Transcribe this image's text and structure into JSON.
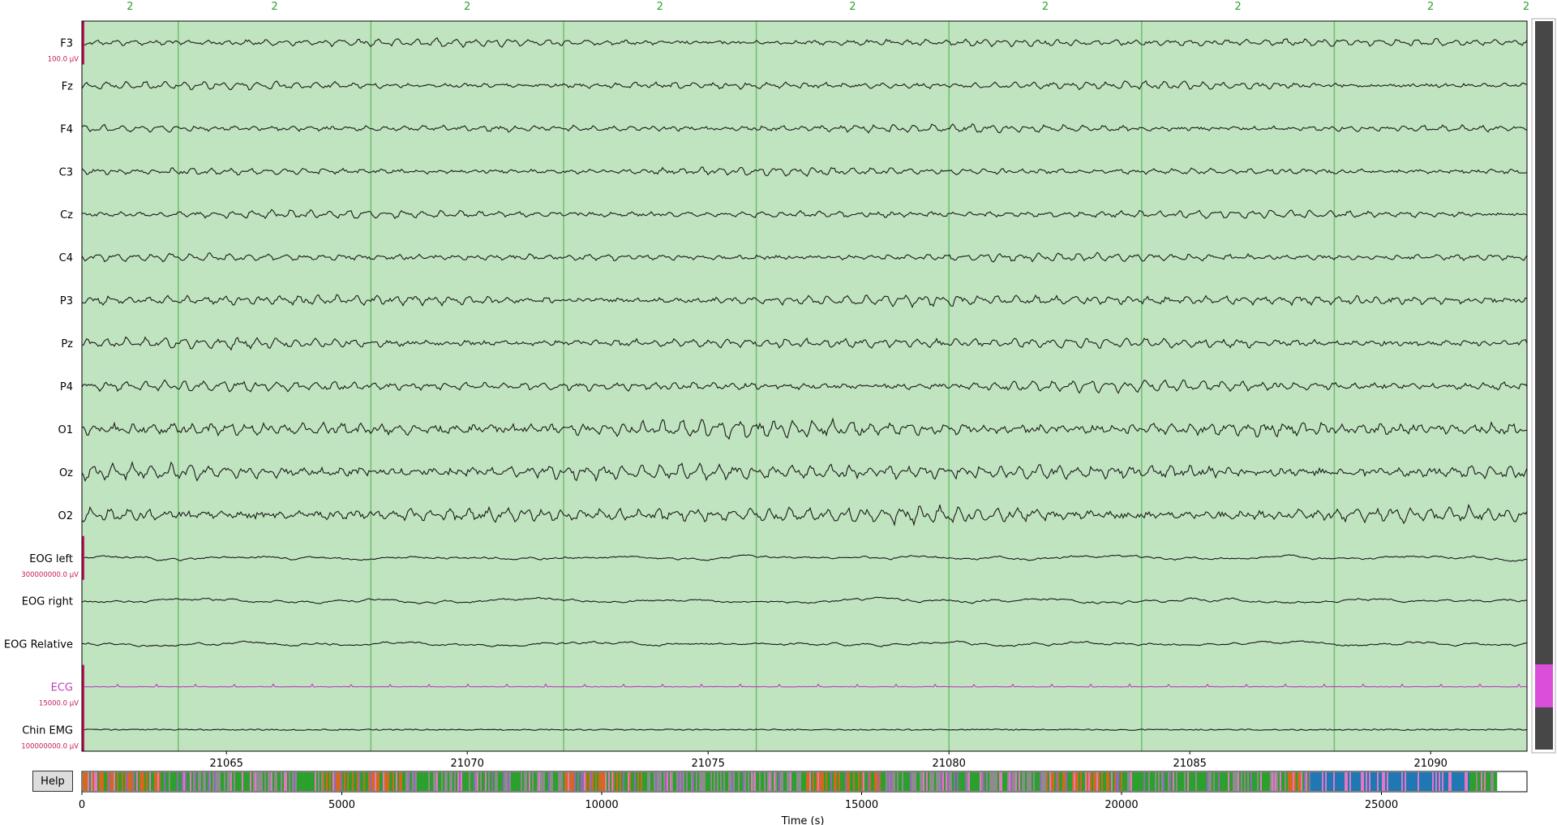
{
  "channels": [
    {
      "name": "F3",
      "kind": "eeg",
      "scale_label": "100.0 µV"
    },
    {
      "name": "Fz",
      "kind": "eeg"
    },
    {
      "name": "F4",
      "kind": "eeg"
    },
    {
      "name": "C3",
      "kind": "eeg"
    },
    {
      "name": "Cz",
      "kind": "eeg"
    },
    {
      "name": "C4",
      "kind": "eeg"
    },
    {
      "name": "P3",
      "kind": "eeg"
    },
    {
      "name": "Pz",
      "kind": "eeg"
    },
    {
      "name": "P4",
      "kind": "eeg"
    },
    {
      "name": "O1",
      "kind": "eeg"
    },
    {
      "name": "Oz",
      "kind": "eeg"
    },
    {
      "name": "O2",
      "kind": "eeg"
    },
    {
      "name": "EOG left",
      "kind": "eog",
      "scale_label": "300000000.0 µV"
    },
    {
      "name": "EOG right",
      "kind": "eog"
    },
    {
      "name": "EOG Relative",
      "kind": "eog"
    },
    {
      "name": "ECG",
      "kind": "ecg",
      "scale_label": "15000.0 µV"
    },
    {
      "name": "Chin EMG",
      "kind": "emg",
      "scale_label": "100000000.0 µV"
    }
  ],
  "main_axis": {
    "x_ticks": [
      21065,
      21070,
      21075,
      21080,
      21085,
      21090
    ],
    "x_range": [
      21062,
      21092
    ]
  },
  "epoch_annotations": {
    "boundaries": [
      21064,
      21068,
      21072,
      21076,
      21080,
      21084,
      21088
    ],
    "labels": [
      {
        "t": 21063,
        "text": "2"
      },
      {
        "t": 21066,
        "text": "2"
      },
      {
        "t": 21070,
        "text": "2"
      },
      {
        "t": 21074,
        "text": "2"
      },
      {
        "t": 21078,
        "text": "2"
      },
      {
        "t": 21082,
        "text": "2"
      },
      {
        "t": 21086,
        "text": "2"
      },
      {
        "t": 21090,
        "text": "2"
      },
      {
        "t": 21092,
        "text": "2"
      }
    ],
    "fill_color": "#c0e3c0",
    "line_color": "#6fbf6f",
    "label_color": "#2ca02c"
  },
  "overview": {
    "x_ticks": [
      0,
      5000,
      10000,
      15000,
      20000,
      25000
    ],
    "x_range": [
      0,
      27800
    ],
    "data_end": 27200,
    "xlabel": "Time (s)",
    "stage_colors": [
      "#2ca02c",
      "#d2691e",
      "#8c8c8c",
      "#1f77b4",
      "#e377c2",
      "#7f7f7f",
      "#9467bd"
    ]
  },
  "help_button": {
    "label": "Help"
  },
  "colors": {
    "trace": "#1a1a1a",
    "ecg_trace": "#bf3fbf",
    "scalebar": "#c2185b",
    "scrollbar_track": "#474747",
    "scrollbar_thumb": "#d94fd9"
  }
}
